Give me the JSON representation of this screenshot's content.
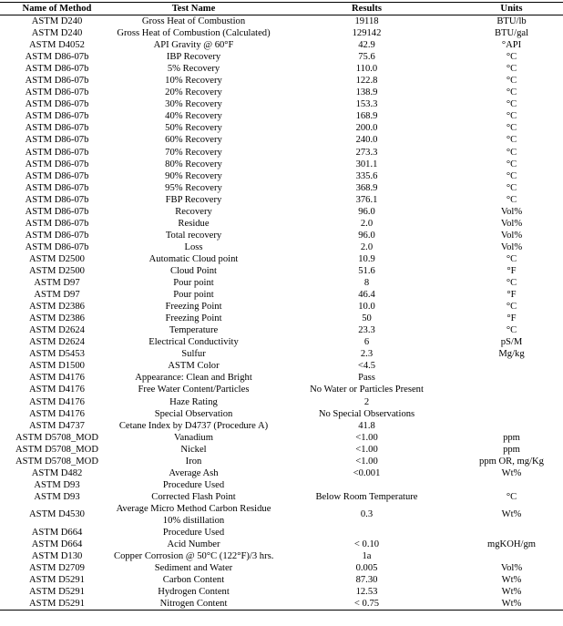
{
  "headers": [
    "Name of Method",
    "Test Name",
    "Results",
    "Units"
  ],
  "rows": [
    [
      "ASTM D240",
      "Gross Heat of Combustion",
      "19118",
      "BTU/lb"
    ],
    [
      "ASTM D240",
      "Gross Heat of Combustion (Calculated)",
      "129142",
      "BTU/gal"
    ],
    [
      "ASTM D4052",
      "API Gravity @ 60°F",
      "42.9",
      "°API"
    ],
    [
      "ASTM D86-07b",
      "IBP Recovery",
      "75.6",
      "°C"
    ],
    [
      "ASTM D86-07b",
      "5% Recovery",
      "110.0",
      "°C"
    ],
    [
      "ASTM D86-07b",
      "10% Recovery",
      "122.8",
      "°C"
    ],
    [
      "ASTM D86-07b",
      "20% Recovery",
      "138.9",
      "°C"
    ],
    [
      "ASTM D86-07b",
      "30% Recovery",
      "153.3",
      "°C"
    ],
    [
      "ASTM D86-07b",
      "40% Recovery",
      "168.9",
      "°C"
    ],
    [
      "ASTM D86-07b",
      "50% Recovery",
      "200.0",
      "°C"
    ],
    [
      "ASTM D86-07b",
      "60% Recovery",
      "240.0",
      "°C"
    ],
    [
      "ASTM D86-07b",
      "70% Recovery",
      "273.3",
      "°C"
    ],
    [
      "ASTM D86-07b",
      "80% Recovery",
      "301.1",
      "°C"
    ],
    [
      "ASTM D86-07b",
      "90% Recovery",
      "335.6",
      "°C"
    ],
    [
      "ASTM D86-07b",
      "95% Recovery",
      "368.9",
      "°C"
    ],
    [
      "ASTM D86-07b",
      "FBP Recovery",
      "376.1",
      "°C"
    ],
    [
      "ASTM D86-07b",
      "Recovery",
      "96.0",
      "Vol%"
    ],
    [
      "ASTM D86-07b",
      "Residue",
      "2.0",
      "Vol%"
    ],
    [
      "ASTM D86-07b",
      "Total recovery",
      "96.0",
      "Vol%"
    ],
    [
      "ASTM D86-07b",
      "Loss",
      "2.0",
      "Vol%"
    ],
    [
      "ASTM D2500",
      "Automatic Cloud point",
      "10.9",
      "°C"
    ],
    [
      "ASTM D2500",
      "Cloud Point",
      "51.6",
      "°F"
    ],
    [
      "ASTM D97",
      "Pour point",
      "8",
      "°C"
    ],
    [
      "ASTM D97",
      "Pour point",
      "46.4",
      "°F"
    ],
    [
      "ASTM D2386",
      "Freezing Point",
      "10.0",
      "°C"
    ],
    [
      "ASTM D2386",
      "Freezing Point",
      "50",
      "°F"
    ],
    [
      "ASTM D2624",
      "Temperature",
      "23.3",
      "°C"
    ],
    [
      "ASTM D2624",
      "Electrical Conductivity",
      "6",
      "pS/M"
    ],
    [
      "ASTM D5453",
      "Sulfur",
      "2.3",
      "Mg/kg"
    ],
    [
      "ASTM D1500",
      "ASTM Color",
      "<4.5",
      ""
    ],
    [
      "ASTM D4176",
      "Appearance: Clean and Bright",
      "Pass",
      ""
    ],
    [
      "ASTM D4176",
      "Free Water Content/Particles",
      "No Water or Particles Present",
      ""
    ],
    [
      "ASTM D4176",
      "Haze Rating",
      "2",
      ""
    ],
    [
      "ASTM D4176",
      "Special Observation",
      "No Special Observations",
      ""
    ],
    [
      "ASTM D4737",
      "Cetane Index by D4737 (Procedure A)",
      "41.8",
      ""
    ],
    [
      "ASTM D5708_MOD",
      "Vanadium",
      "<1.00",
      "ppm"
    ],
    [
      "ASTM D5708_MOD",
      "Nickel",
      "<1.00",
      "ppm"
    ],
    [
      "ASTM D5708_MOD",
      "Iron",
      "<1.00",
      "ppm OR, mg/Kg"
    ],
    [
      "ASTM D482",
      "Average Ash",
      "<0.001",
      "Wt%"
    ],
    [
      "ASTM D93",
      "Procedure Used",
      "",
      ""
    ],
    [
      "ASTM D93",
      "Corrected Flash Point",
      "Below Room Temperature",
      "°C"
    ],
    [
      "ASTM D4530",
      "Average Micro Method Carbon Residue 10% distillation",
      "0.3",
      "Wt%"
    ],
    [
      "ASTM D664",
      "Procedure Used",
      "",
      ""
    ],
    [
      "ASTM D664",
      "Acid Number",
      "< 0.10",
      "mgKOH/gm"
    ],
    [
      "ASTM D130",
      "Copper Corrosion @ 50°C (122°F)/3 hrs.",
      "1a",
      ""
    ],
    [
      "ASTM D2709",
      "Sediment and Water",
      "0.005",
      "Vol%"
    ],
    [
      "ASTM D5291",
      "Carbon Content",
      "87.30",
      "Wt%"
    ],
    [
      "ASTM D5291",
      "Hydrogen Content",
      "12.53",
      "Wt%"
    ],
    [
      "ASTM D5291",
      "Nitrogen Content",
      "< 0.75",
      "Wt%"
    ]
  ]
}
